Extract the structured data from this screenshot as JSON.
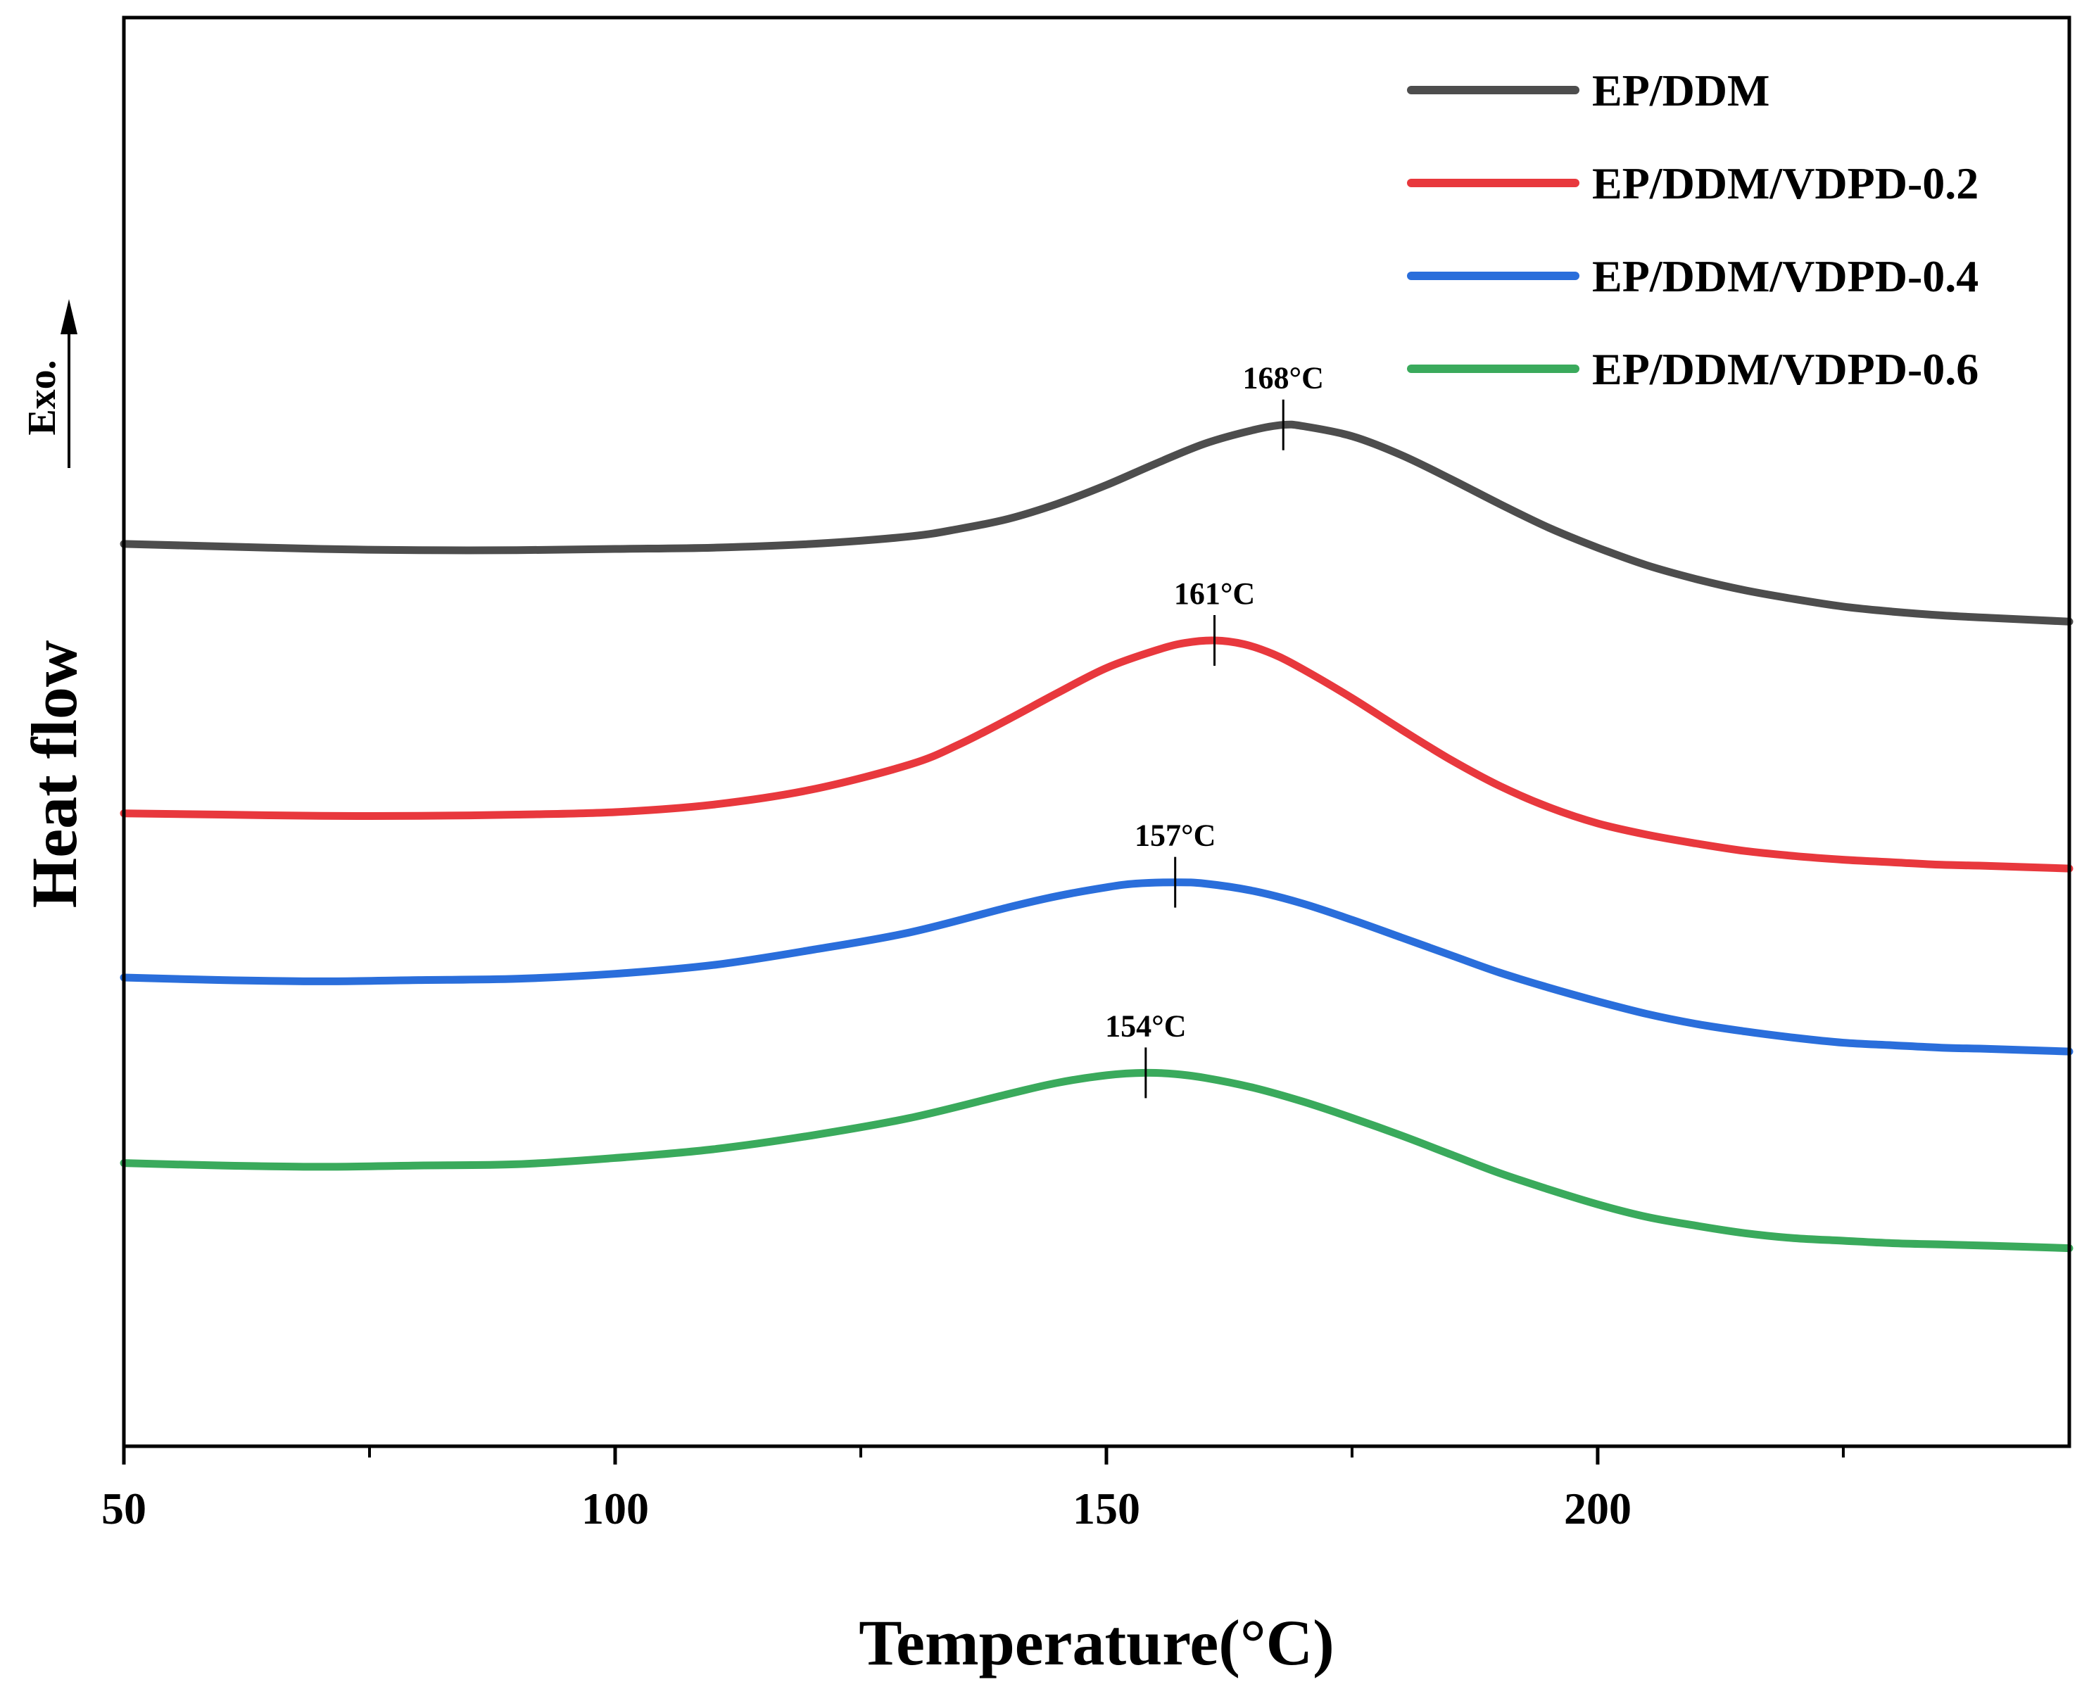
{
  "chart_data": {
    "type": "line",
    "title": "",
    "xlabel": "Temperature(°C)",
    "ylabel": "Heat flow",
    "exo_label": "Exo.",
    "xlim": [
      50,
      248
    ],
    "ylim": [
      -3.2,
      8.2
    ],
    "x_ticks": [
      50,
      100,
      150,
      200
    ],
    "x_tick_labels": [
      "50",
      "100",
      "150",
      "200"
    ],
    "x_minor_ticks": [
      75,
      125,
      175,
      225
    ],
    "y_ticks_shown": false,
    "grid": false,
    "legend_position": "top-right",
    "series": [
      {
        "name": "EP/DDM",
        "color": "#4d4d4d",
        "x": [
          50,
          60,
          70,
          80,
          90,
          100,
          110,
          120,
          130,
          135,
          140,
          145,
          150,
          155,
          160,
          165,
          168,
          170,
          175,
          180,
          185,
          190,
          195,
          200,
          205,
          210,
          215,
          220,
          225,
          230,
          235,
          240,
          248
        ],
        "y": [
          4.0,
          3.98,
          3.96,
          3.95,
          3.95,
          3.96,
          3.97,
          4.0,
          4.06,
          4.12,
          4.2,
          4.32,
          4.47,
          4.64,
          4.8,
          4.91,
          4.95,
          4.94,
          4.86,
          4.71,
          4.52,
          4.32,
          4.13,
          3.97,
          3.83,
          3.72,
          3.63,
          3.56,
          3.5,
          3.46,
          3.43,
          3.41,
          3.38
        ]
      },
      {
        "name": "EP/DDM/VDPD-0.2",
        "color": "#e8383d",
        "x": [
          50,
          60,
          70,
          80,
          90,
          100,
          110,
          120,
          130,
          135,
          140,
          145,
          150,
          155,
          158,
          161,
          164,
          167,
          170,
          175,
          180,
          185,
          190,
          195,
          200,
          205,
          210,
          215,
          220,
          225,
          230,
          235,
          240,
          248
        ],
        "y": [
          1.85,
          1.84,
          1.83,
          1.83,
          1.84,
          1.86,
          1.92,
          2.04,
          2.24,
          2.4,
          2.6,
          2.81,
          3.01,
          3.15,
          3.21,
          3.23,
          3.2,
          3.12,
          3.0,
          2.77,
          2.52,
          2.28,
          2.07,
          1.9,
          1.77,
          1.68,
          1.61,
          1.55,
          1.51,
          1.48,
          1.46,
          1.44,
          1.43,
          1.41
        ]
      },
      {
        "name": "EP/DDM/VDPD-0.4",
        "color": "#2a6edb",
        "x": [
          50,
          60,
          70,
          80,
          90,
          100,
          110,
          120,
          130,
          140,
          145,
          150,
          153,
          157,
          160,
          165,
          170,
          175,
          180,
          185,
          190,
          195,
          200,
          205,
          210,
          215,
          220,
          225,
          230,
          235,
          240,
          248
        ],
        "y": [
          0.54,
          0.52,
          0.51,
          0.52,
          0.53,
          0.57,
          0.64,
          0.76,
          0.9,
          1.1,
          1.19,
          1.26,
          1.29,
          1.3,
          1.29,
          1.23,
          1.13,
          1.0,
          0.86,
          0.72,
          0.58,
          0.46,
          0.35,
          0.25,
          0.17,
          0.11,
          0.06,
          0.02,
          0.0,
          -0.02,
          -0.03,
          -0.05
        ]
      },
      {
        "name": "EP/DDM/VDPD-0.6",
        "color": "#3aaa5c",
        "x": [
          50,
          60,
          70,
          80,
          90,
          100,
          110,
          120,
          130,
          140,
          145,
          150,
          154,
          157,
          160,
          165,
          170,
          175,
          180,
          185,
          190,
          195,
          200,
          205,
          210,
          215,
          220,
          225,
          230,
          235,
          240,
          248
        ],
        "y": [
          -0.94,
          -0.96,
          -0.97,
          -0.96,
          -0.95,
          -0.9,
          -0.83,
          -0.72,
          -0.58,
          -0.39,
          -0.3,
          -0.24,
          -0.22,
          -0.23,
          -0.26,
          -0.34,
          -0.45,
          -0.58,
          -0.72,
          -0.87,
          -1.02,
          -1.15,
          -1.27,
          -1.37,
          -1.44,
          -1.5,
          -1.54,
          -1.56,
          -1.58,
          -1.59,
          -1.6,
          -1.62
        ]
      }
    ],
    "peaks": [
      {
        "series": "EP/DDM",
        "x": 168,
        "y": 4.95,
        "label": "168°C"
      },
      {
        "series": "EP/DDM/VDPD-0.2",
        "x": 161,
        "y": 3.23,
        "label": "161°C"
      },
      {
        "series": "EP/DDM/VDPD-0.4",
        "x": 157,
        "y": 1.3,
        "label": "157°C"
      },
      {
        "series": "EP/DDM/VDPD-0.6",
        "x": 154,
        "y": -0.22,
        "label": "154°C"
      }
    ]
  }
}
